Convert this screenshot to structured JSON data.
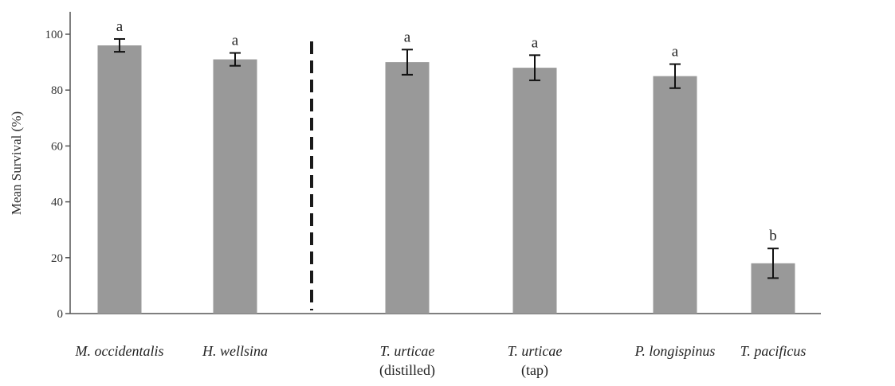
{
  "chart_data": {
    "type": "bar",
    "ylabel": "Mean Survival (%)",
    "ylim": [
      0,
      108
    ],
    "yticks": [
      0,
      20,
      40,
      60,
      80,
      100
    ],
    "categories": [
      {
        "name": "M. occidentalis",
        "sub": ""
      },
      {
        "name": "H. wellsina",
        "sub": ""
      },
      {
        "name": "T. urticae",
        "sub": "(distilled)"
      },
      {
        "name": "T. urticae",
        "sub": "(tap)"
      },
      {
        "name": "P. longispinus",
        "sub": ""
      },
      {
        "name": "T. pacificus",
        "sub": ""
      }
    ],
    "values": [
      96,
      91,
      90,
      88,
      85,
      18
    ],
    "errors": [
      2.3,
      2.3,
      4.5,
      4.5,
      4.3,
      5.3
    ],
    "significance": [
      "a",
      "a",
      "a",
      "a",
      "a",
      "b"
    ],
    "bar_color": "#999999",
    "divider_after_index": 1
  }
}
